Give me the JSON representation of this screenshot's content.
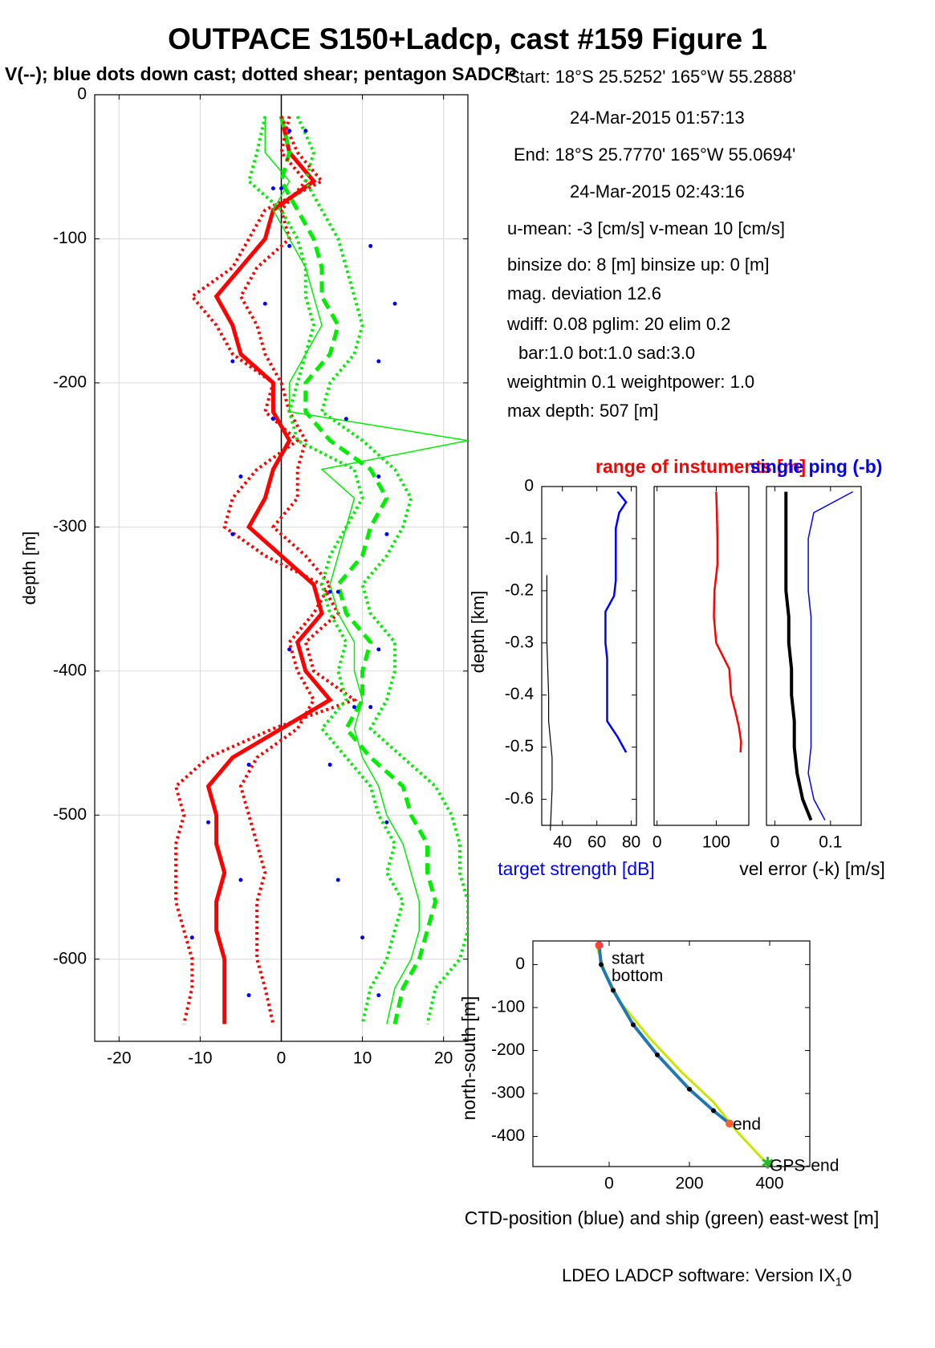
{
  "header": {
    "title": "OUTPACE S150+Ladcp, cast #159  Figure 1",
    "subtitle": "V(--); blue dots down cast; dotted shear; pentagon SADCP"
  },
  "info": {
    "lines": [
      "Start:  18°S 25.5252'     165°W 55.2888'",
      "24-Mar-2015 01:57:13",
      "End:   18°S 25.7770'     165°W 55.0694'",
      "24-Mar-2015 02:43:16",
      "u-mean:  -3 [cm/s]    v-mean  10 [cm/s]",
      "binsize do: 8 [m]  binsize up:  0 [m]",
      "mag. deviation 12.6",
      "wdiff: 0.08  pglim: 20  elim 0.2",
      "bar:1.0 bot:1.0 sad:3.0",
      "weightmin 0.1  weightpower: 1.0",
      "max depth: 507 [m]"
    ]
  },
  "footer": {
    "text": "LDEO LADCP software: Version IX",
    "sub": "1",
    "tail": "0"
  },
  "colors": {
    "u": "#ff0000",
    "v": "#00ee00",
    "dots": "#0000ff",
    "black": "#000000",
    "ctd": "#1f77b4"
  },
  "chart_data": [
    {
      "type": "line",
      "name": "velocity-profile",
      "ylabel": "depth [m]",
      "xlim": [
        -23,
        23
      ],
      "ylim": [
        -657,
        0
      ],
      "xticks": [
        -20,
        -10,
        0,
        10,
        20
      ],
      "yticks": [
        0,
        -100,
        -200,
        -300,
        -400,
        -500,
        -600
      ],
      "grid": true,
      "depth": [
        -15,
        -40,
        -60,
        -80,
        -100,
        -120,
        -140,
        -160,
        -180,
        -200,
        -220,
        -240,
        -260,
        -280,
        -300,
        -320,
        -340,
        -360,
        -380,
        -400,
        -420,
        -440,
        -460,
        -480,
        -500,
        -520,
        -540,
        -560,
        -580,
        -600,
        -620,
        -645
      ],
      "series": [
        {
          "name": "u",
          "style": "solid-thick",
          "color": "red",
          "values": [
            0,
            1,
            4,
            -1,
            -2,
            -5,
            -8,
            -6,
            -5,
            -1,
            -1,
            1,
            -1,
            -2,
            -4,
            0,
            4,
            5,
            2,
            3,
            6,
            0,
            -6,
            -9,
            -8,
            -8,
            -7,
            -8,
            -8,
            -7,
            -7,
            -7
          ]
        },
        {
          "name": "v",
          "style": "dashed-thick",
          "color": "green",
          "values": [
            0,
            1,
            0,
            2,
            4,
            5,
            5,
            7,
            6,
            3,
            3,
            6,
            11,
            13,
            11,
            10,
            7,
            8,
            11,
            10,
            10,
            8,
            11,
            15,
            16,
            18,
            18,
            19,
            18,
            17,
            15,
            14
          ]
        },
        {
          "name": "u-shear",
          "style": "dotted",
          "color": "red",
          "values": [
            0,
            2,
            5,
            -2,
            -4,
            -6,
            -11,
            -8,
            -6,
            -1,
            -2,
            2,
            -3,
            -6,
            -7,
            -2,
            5,
            7,
            3,
            4,
            9,
            -1,
            -9,
            -13,
            -12,
            -13,
            -13,
            -13,
            -12,
            -11,
            -11,
            -12
          ]
        },
        {
          "name": "u-shear-2",
          "style": "dotted",
          "color": "red",
          "values": [
            1,
            0,
            3,
            0,
            1,
            -3,
            -5,
            -3,
            -2,
            0,
            1,
            3,
            2,
            2,
            -1,
            3,
            6,
            4,
            1,
            2,
            4,
            2,
            -3,
            -5,
            -4,
            -3,
            -2,
            -3,
            -3,
            -3,
            -2,
            -1
          ]
        },
        {
          "name": "v-shear",
          "style": "dotted",
          "color": "green",
          "values": [
            -2,
            -3,
            -4,
            0,
            2,
            3,
            3,
            4,
            3,
            2,
            1,
            2,
            9,
            10,
            8,
            6,
            5,
            6,
            8,
            7,
            8,
            5,
            8,
            11,
            12,
            14,
            13,
            15,
            14,
            13,
            11,
            10
          ]
        },
        {
          "name": "v-shear-2",
          "style": "dotted",
          "color": "green",
          "values": [
            2,
            4,
            3,
            5,
            7,
            8,
            9,
            10,
            9,
            6,
            5,
            10,
            14,
            16,
            15,
            13,
            10,
            11,
            14,
            14,
            13,
            11,
            15,
            19,
            21,
            22,
            22,
            23,
            23,
            22,
            19,
            18
          ]
        },
        {
          "name": "ship-track",
          "style": "solid",
          "color": "green",
          "values": [
            -2,
            -2,
            1,
            -1,
            1,
            3,
            4,
            5,
            3,
            1,
            1,
            23,
            5,
            9,
            8,
            7,
            6,
            7,
            9,
            9,
            10,
            9,
            10,
            12,
            13,
            15,
            16,
            17,
            17,
            16,
            14,
            13
          ]
        }
      ],
      "downcast_dots": [
        {
          "u": 1,
          "v": 11,
          "depth": -105
        },
        {
          "u": -2,
          "v": 14,
          "depth": -145
        },
        {
          "u": -6,
          "v": 12,
          "depth": -185
        },
        {
          "u": -1,
          "v": 8,
          "depth": -225
        },
        {
          "u": -5,
          "v": 12,
          "depth": -265
        },
        {
          "u": -6,
          "v": 13,
          "depth": -305
        },
        {
          "u": 6,
          "v": 7,
          "depth": -345
        },
        {
          "u": 1,
          "v": 12,
          "depth": -385
        },
        {
          "u": 11,
          "v": 9,
          "depth": -425
        },
        {
          "u": -4,
          "v": 6,
          "depth": -465
        },
        {
          "u": -9,
          "v": 13,
          "depth": -505
        },
        {
          "u": -5,
          "v": 7,
          "depth": -545
        },
        {
          "u": -11,
          "v": 10,
          "depth": -585
        },
        {
          "u": -4,
          "v": 12,
          "depth": -625
        },
        {
          "u": 1,
          "v": 3,
          "depth": -25
        },
        {
          "u": -1,
          "v": 0,
          "depth": -65
        }
      ]
    },
    {
      "type": "line",
      "name": "target-strength",
      "title": "range of instuments [m]",
      "ylabel": "depth [km]",
      "xlabel": "target strength [dB]",
      "xlim": [
        28,
        83
      ],
      "ylim": [
        -0.65,
        0
      ],
      "xticks": [
        40,
        60,
        80
      ],
      "yticks": [
        0,
        -0.1,
        -0.2,
        -0.3,
        -0.4,
        -0.5,
        -0.6
      ],
      "depth": [
        -0.01,
        -0.03,
        -0.05,
        -0.08,
        -0.11,
        -0.15,
        -0.18,
        -0.21,
        -0.24,
        -0.27,
        -0.3,
        -0.33,
        -0.36,
        -0.39,
        -0.42,
        -0.45,
        -0.48,
        -0.51
      ],
      "series": [
        {
          "name": "downlooker",
          "color": "blue",
          "values": [
            72,
            77,
            73,
            71,
            71,
            71,
            71,
            70,
            65,
            65,
            65,
            66,
            66,
            66,
            66,
            66,
            72,
            77
          ]
        }
      ],
      "series_black": {
        "depth": [
          -0.17,
          -0.3,
          -0.4,
          -0.45,
          -0.52,
          -0.58,
          -0.66
        ],
        "values": [
          31,
          31,
          32,
          32,
          34,
          34,
          33
        ]
      }
    },
    {
      "type": "line",
      "name": "range",
      "xlim": [
        -5,
        155
      ],
      "ylim": [
        -0.65,
        0
      ],
      "xticks": [
        0,
        100
      ],
      "depth": [
        -0.01,
        -0.05,
        -0.1,
        -0.15,
        -0.2,
        -0.25,
        -0.3,
        -0.35,
        -0.4,
        -0.43,
        -0.46,
        -0.49,
        -0.51
      ],
      "series": [
        {
          "name": "range",
          "color": "red",
          "values": [
            100,
            101,
            102,
            102,
            97,
            96,
            100,
            122,
            125,
            132,
            138,
            142,
            141
          ]
        }
      ]
    },
    {
      "type": "line",
      "name": "velocity-error",
      "title": "single ping (-b)",
      "xlabel": "vel error (-k) [m/s]",
      "xlim": [
        -0.015,
        0.155
      ],
      "ylim": [
        -0.65,
        0
      ],
      "xticks": [
        0,
        0.1
      ],
      "depth": [
        -0.01,
        -0.05,
        -0.1,
        -0.15,
        -0.2,
        -0.25,
        -0.3,
        -0.35,
        -0.4,
        -0.45,
        -0.5,
        -0.55,
        -0.6,
        -0.64
      ],
      "series": [
        {
          "name": "vel error",
          "color": "black",
          "values": [
            0.02,
            0.02,
            0.02,
            0.02,
            0.02,
            0.025,
            0.025,
            0.03,
            0.03,
            0.035,
            0.035,
            0.04,
            0.05,
            0.065
          ]
        },
        {
          "name": "single ping",
          "color": "blue",
          "values": [
            0.14,
            0.07,
            0.06,
            0.06,
            0.06,
            0.065,
            0.065,
            0.065,
            0.065,
            0.065,
            0.065,
            0.06,
            0.07,
            0.09
          ]
        }
      ]
    },
    {
      "type": "line",
      "name": "position",
      "xlabel": "CTD-position (blue) and ship (green) east-west [m]",
      "ylabel": "north-south [m]",
      "xlim": [
        -190,
        500
      ],
      "ylim": [
        -470,
        55
      ],
      "xticks": [
        0,
        200,
        400
      ],
      "yticks": [
        0,
        -100,
        -200,
        -300,
        -400
      ],
      "series": [
        {
          "name": "CTD",
          "color": "blue",
          "x": [
            -25,
            -20,
            10,
            60,
            120,
            200,
            260,
            300
          ],
          "y": [
            45,
            0,
            -60,
            -140,
            -210,
            -290,
            -340,
            -370
          ]
        },
        {
          "name": "ship",
          "color": "green",
          "x": [
            -30,
            -10,
            30,
            100,
            180,
            260,
            320,
            395
          ],
          "y": [
            40,
            -20,
            -90,
            -170,
            -250,
            -320,
            -390,
            -465
          ]
        }
      ],
      "labels": [
        "start",
        "bottom",
        "end",
        "GPS-end"
      ]
    }
  ]
}
